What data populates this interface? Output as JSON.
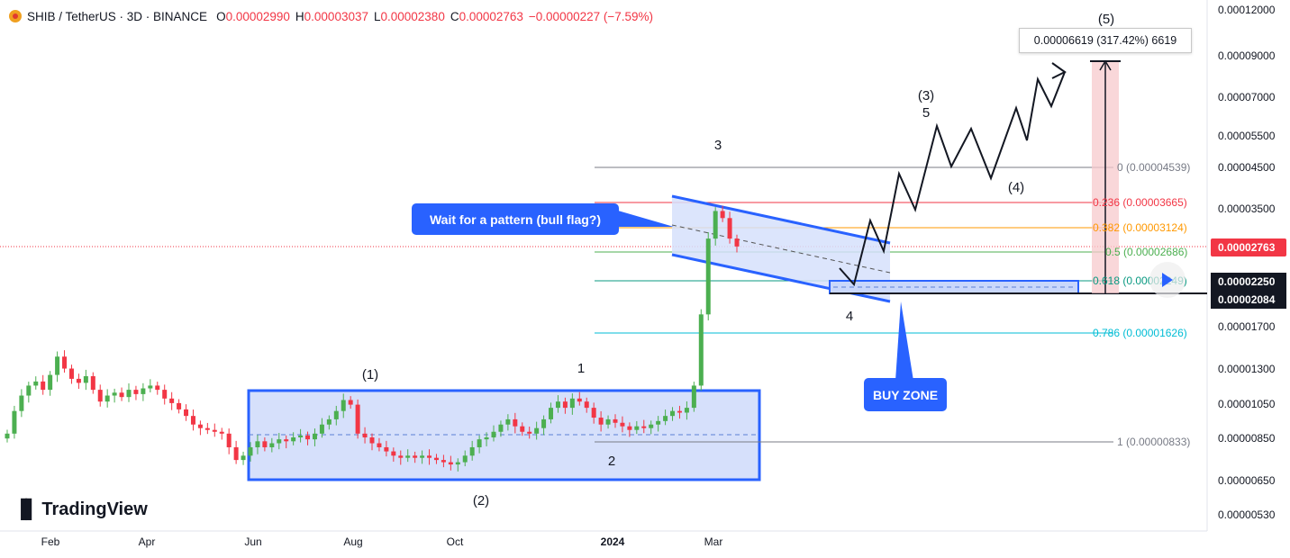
{
  "header": {
    "symbol": "SHIB / TetherUS · 3D · BINANCE",
    "o_label": "O",
    "o_value": "0.00002990",
    "h_label": "H",
    "h_value": "0.00003037",
    "l_label": "L",
    "l_value": "0.00002380",
    "c_label": "C",
    "c_value": "0.00002763",
    "change": "−0.00000227 (−7.59%)"
  },
  "branding": {
    "name": "TradingView"
  },
  "annotations": {
    "pattern_note": "Wait for a pattern (bull flag?)",
    "buy_zone": "BUY ZONE",
    "measure": "0.00006619 (317.42%) 6619",
    "waves": [
      "(1)",
      "(2)",
      "1",
      "2",
      "3",
      "4",
      "(3)",
      "5",
      "(4)",
      "(5)"
    ]
  },
  "colors": {
    "up": "#26a69a",
    "up_body": "#4caf50",
    "down": "#f23645",
    "accent": "#2962ff",
    "zone_fill": "#d6e0fb",
    "price_tag": "#f23645"
  },
  "chart_data": {
    "type": "candlestick",
    "title": "SHIB / TetherUS · 3D · BINANCE",
    "yscale": "log",
    "ylim": [
      5.1e-06,
      0.000123
    ],
    "y_tick_labels": [
      "0.00012000",
      "0.00009000",
      "0.00007000",
      "0.00005500",
      "0.00004500",
      "0.00003500",
      "0.00002763",
      "0.00002250",
      "0.00002084",
      "0.00001700",
      "0.00001300",
      "0.00001050",
      "0.00000850",
      "0.00000650",
      "0.00000530"
    ],
    "x_tick_labels": [
      "Feb",
      "Apr",
      "Jun",
      "Aug",
      "Oct",
      "2024",
      "Mar"
    ],
    "last_price": "0.00002763",
    "fibonacci": [
      {
        "level": "0",
        "price": "0.00004539"
      },
      {
        "level": "0.236",
        "price": "0.00003665"
      },
      {
        "level": "0.382",
        "price": "0.00003124"
      },
      {
        "level": "0.5",
        "price": "0.00002686"
      },
      {
        "level": "0.618",
        "price": "0.00002249"
      },
      {
        "level": "0.786",
        "price": "0.00001626"
      },
      {
        "level": "1",
        "price": "0.00000833"
      }
    ],
    "buy_zone": [
      2.084e-05,
      2.25e-05
    ],
    "target": 8.8e-05,
    "closes": [
      8.5e-06,
      9.8e-06,
      1.08e-05,
      1.15e-05,
      1.18e-05,
      1.12e-05,
      1.23e-05,
      1.38e-05,
      1.28e-05,
      1.2e-05,
      1.17e-05,
      1.22e-05,
      1.12e-05,
      1.04e-05,
      1.08e-05,
      1.1e-05,
      1.07e-05,
      1.12e-05,
      1.09e-05,
      1.13e-05,
      1.15e-05,
      1.12e-05,
      1.06e-05,
      1.03e-05,
      9.9e-06,
      9.5e-06,
      9e-06,
      8.8e-06,
      8.7e-06,
      8.6e-06,
      8.5e-06,
      7.8e-06,
      7.2e-06,
      7.4e-06,
      7.8e-06,
      8.1e-06,
      7.8e-06,
      8e-06,
      8.2e-06,
      8.1e-06,
      8.3e-06,
      8.4e-06,
      8.2e-06,
      8.5e-06,
      9e-06,
      9.3e-06,
      9.8e-06,
      1.05e-05,
      1.02e-05,
      8.5e-06,
      8.3e-06,
      8e-06,
      7.8e-06,
      7.6e-06,
      7.4e-06,
      7.3e-06,
      7.4e-06,
      7.3e-06,
      7.4e-06,
      7.3e-06,
      7.2e-06,
      7.1e-06,
      7e-06,
      7.1e-06,
      7.4e-06,
      7.8e-06,
      8.2e-06,
      8.3e-06,
      8.6e-06,
      9e-06,
      9.3e-06,
      8.9e-06,
      8.6e-06,
      8.5e-06,
      8.8e-06,
      9.3e-06,
      1e-05,
      1.04e-05,
      1e-05,
      1.06e-05,
      1.04e-05,
      1e-05,
      9.4e-06,
      9e-06,
      9.3e-06,
      9.1e-06,
      8.9e-06,
      8.7e-06,
      8.9e-06,
      8.8e-06,
      9e-06,
      9.2e-06,
      9.5e-06,
      9.8e-06,
      9.7e-06,
      1e-05,
      1.15e-05,
      1.8e-05,
      2.9e-05,
      3.45e-05,
      3.3e-05,
      2.9e-05,
      2.76e-05
    ]
  }
}
